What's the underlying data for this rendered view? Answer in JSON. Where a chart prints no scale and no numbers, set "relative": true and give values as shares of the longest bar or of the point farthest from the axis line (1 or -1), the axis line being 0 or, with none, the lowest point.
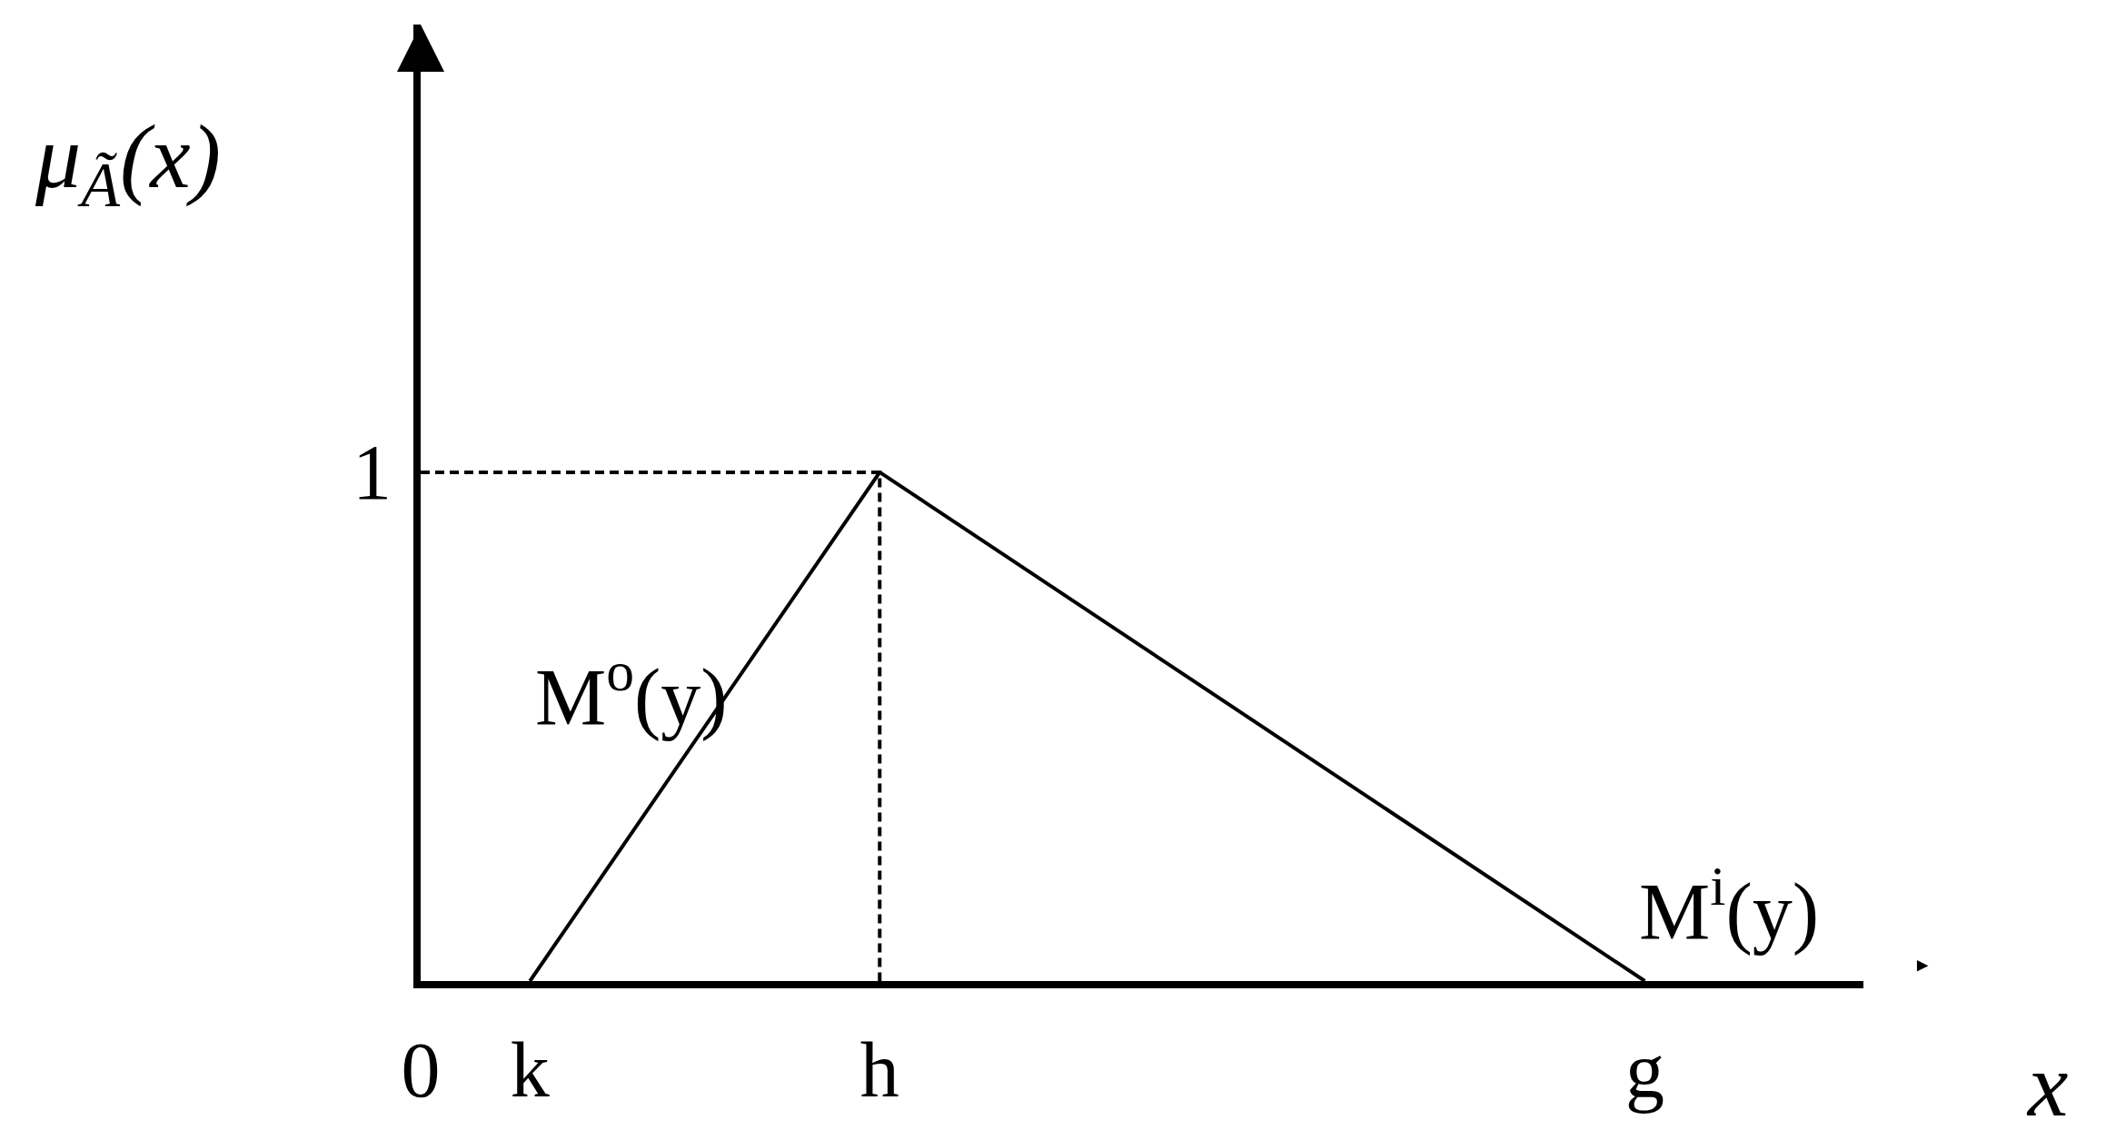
{
  "chart_data": {
    "type": "line",
    "relative": true,
    "xlabel": "x",
    "ylabel": "μ$_{Ã}$(x)",
    "categories": [
      "0",
      null,
      null,
      null,
      null,
      "k",
      null,
      null,
      null,
      null,
      null,
      null,
      null,
      null,
      null,
      null,
      null,
      null,
      null,
      null,
      null,
      "h",
      null,
      null,
      null,
      null,
      null,
      null,
      null,
      null,
      null,
      null,
      null,
      null,
      null,
      null,
      null,
      null,
      null,
      null,
      null,
      null,
      null,
      null,
      null,
      null,
      null,
      null,
      null,
      null,
      null,
      null,
      null,
      null,
      null,
      null,
      "g",
      null,
      null,
      null,
      null,
      null,
      null,
      null,
      null,
      null,
      null
    ],
    "series": [
      {
        "name": "M$^{o}$(y)",
        "color": "#000000",
        "x": [
          "k",
          "h"
        ],
        "values": [
          0,
          1
        ],
        "line_style": "solid"
      },
      {
        "name": "M$^{i}$(y)",
        "color": "#000000",
        "x": [
          "h",
          "g"
        ],
        "values": [
          1,
          0
        ],
        "line_style": "solid"
      },
      {
        "color": "#000000",
        "x": [
          "0",
          "h",
          "h"
        ],
        "values": [
          1,
          1,
          0
        ],
        "line_style": "dashed"
      }
    ],
    "annotations": [
      "1"
    ],
    "grid": false,
    "marker": "none"
  }
}
